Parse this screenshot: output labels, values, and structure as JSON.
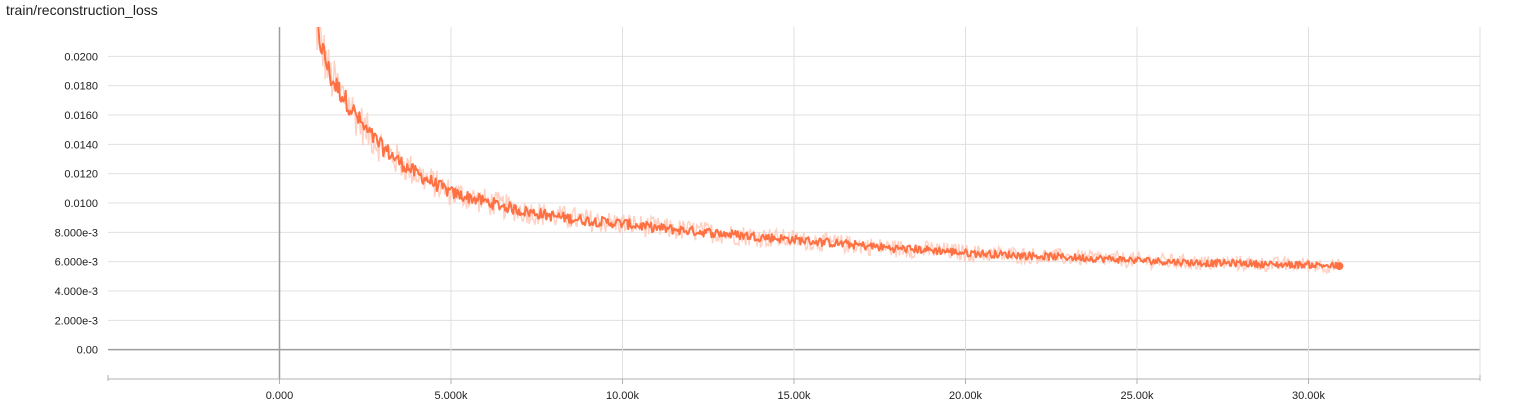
{
  "chart_data": {
    "type": "line",
    "title": "train/reconstruction_loss",
    "xlabel": "",
    "ylabel": "",
    "xlim": [
      -5000,
      35000
    ],
    "ylim": [
      -0.002,
      0.022
    ],
    "x_ticks": [
      {
        "value": 0,
        "label": "0.000"
      },
      {
        "value": 5000,
        "label": "5.000k"
      },
      {
        "value": 10000,
        "label": "10.00k"
      },
      {
        "value": 15000,
        "label": "15.00k"
      },
      {
        "value": 20000,
        "label": "20.00k"
      },
      {
        "value": 25000,
        "label": "25.00k"
      },
      {
        "value": 30000,
        "label": "30.00k"
      }
    ],
    "y_ticks": [
      {
        "value": 0.0,
        "label": "0.00"
      },
      {
        "value": 0.002,
        "label": "2.000e-3"
      },
      {
        "value": 0.004,
        "label": "4.000e-3"
      },
      {
        "value": 0.006,
        "label": "6.000e-3"
      },
      {
        "value": 0.008,
        "label": "8.000e-3"
      },
      {
        "value": 0.01,
        "label": "0.0100"
      },
      {
        "value": 0.012,
        "label": "0.0120"
      },
      {
        "value": 0.014,
        "label": "0.0140"
      },
      {
        "value": 0.016,
        "label": "0.0160"
      },
      {
        "value": 0.018,
        "label": "0.0180"
      },
      {
        "value": 0.02,
        "label": "0.0200"
      }
    ],
    "grid": true,
    "legend": "none",
    "series": [
      {
        "color": "#ff7043",
        "raw_color": "#ffccbc",
        "x": [
          1000,
          1500,
          2000,
          2500,
          3000,
          3500,
          4000,
          5000,
          6000,
          7000,
          8000,
          9000,
          10000,
          11000,
          12000,
          13000,
          14000,
          15000,
          16000,
          17000,
          18000,
          19000,
          20000,
          21000,
          22000,
          23000,
          24000,
          25000,
          26000,
          27000,
          28000,
          29000,
          30000,
          30900
        ],
        "y": [
          0.0225,
          0.0185,
          0.0168,
          0.015,
          0.0138,
          0.0128,
          0.012,
          0.0107,
          0.0101,
          0.0095,
          0.0091,
          0.0088,
          0.0086,
          0.0083,
          0.0081,
          0.0079,
          0.0077,
          0.0075,
          0.0073,
          0.0071,
          0.0069,
          0.0068,
          0.0066,
          0.0065,
          0.0064,
          0.0063,
          0.0062,
          0.0061,
          0.006,
          0.0059,
          0.0059,
          0.0058,
          0.0058,
          0.0057
        ]
      }
    ]
  }
}
